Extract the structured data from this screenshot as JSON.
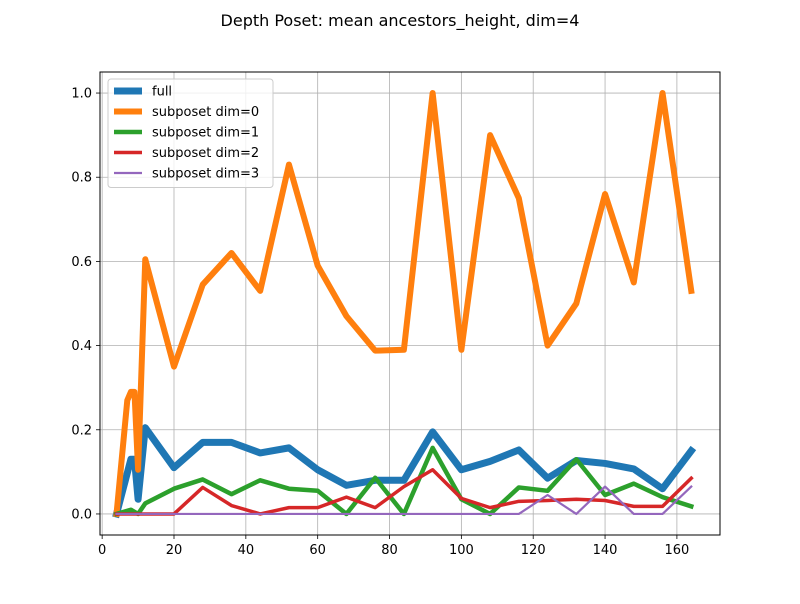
{
  "chart_data": {
    "type": "line",
    "title": "Depth Poset: mean ancestors_height, dim=4",
    "xlabel": "",
    "ylabel": "",
    "xlim": [
      -0.6,
      172.0
    ],
    "ylim": [
      -0.05,
      1.05
    ],
    "xticks": [
      0,
      20,
      40,
      60,
      80,
      100,
      120,
      140,
      160
    ],
    "yticks": [
      0.0,
      0.2,
      0.4,
      0.6,
      0.8,
      1.0
    ],
    "xtick_labels": [
      "0",
      "20",
      "40",
      "60",
      "80",
      "100",
      "120",
      "140",
      "160"
    ],
    "ytick_labels": [
      "0.0",
      "0.2",
      "0.4",
      "0.6",
      "0.8",
      "1.0"
    ],
    "grid": true,
    "legend_position": "upper-left",
    "series": [
      {
        "name": "full",
        "color": "#1f77b4",
        "line_width": 7,
        "x": [
          4,
          8,
          9,
          10,
          12,
          20,
          28,
          36,
          44,
          52,
          60,
          68,
          76,
          84,
          92,
          100,
          108,
          116,
          124,
          132,
          140,
          148,
          156,
          164
        ],
        "y": [
          0.0,
          0.13,
          0.13,
          0.035,
          0.205,
          0.11,
          0.17,
          0.17,
          0.145,
          0.157,
          0.105,
          0.068,
          0.08,
          0.08,
          0.195,
          0.105,
          0.125,
          0.152,
          0.085,
          0.127,
          0.12,
          0.107,
          0.06,
          0.15
        ]
      },
      {
        "name": "subposet dim=0",
        "color": "#ff7f0e",
        "line_width": 6,
        "x": [
          4,
          7,
          8,
          9,
          10,
          12,
          20,
          28,
          36,
          44,
          52,
          60,
          68,
          76,
          84,
          92,
          100,
          108,
          116,
          124,
          132,
          140,
          148,
          156,
          164
        ],
        "y": [
          0.0,
          0.27,
          0.29,
          0.29,
          0.105,
          0.605,
          0.35,
          0.545,
          0.62,
          0.53,
          0.83,
          0.59,
          0.47,
          0.388,
          0.39,
          1.0,
          0.39,
          0.9,
          0.75,
          0.4,
          0.5,
          0.76,
          0.55,
          1.0,
          0.53
        ]
      },
      {
        "name": "subposet dim=1",
        "color": "#2ca02c",
        "line_width": 4.5,
        "x": [
          4,
          8,
          10,
          12,
          20,
          28,
          36,
          44,
          52,
          60,
          68,
          76,
          84,
          92,
          100,
          108,
          116,
          124,
          132,
          140,
          148,
          156,
          164
        ],
        "y": [
          0.0,
          0.01,
          0.0,
          0.025,
          0.06,
          0.082,
          0.047,
          0.08,
          0.06,
          0.055,
          0.0,
          0.086,
          0.0,
          0.157,
          0.035,
          0.0,
          0.063,
          0.055,
          0.13,
          0.045,
          0.072,
          0.04,
          0.018
        ]
      },
      {
        "name": "subposet dim=2",
        "color": "#d62728",
        "line_width": 3.5,
        "x": [
          4,
          8,
          10,
          12,
          20,
          28,
          36,
          44,
          52,
          60,
          68,
          76,
          84,
          92,
          100,
          108,
          116,
          124,
          132,
          140,
          148,
          156,
          164
        ],
        "y": [
          0.0,
          0.0,
          0.0,
          0.0,
          0.0,
          0.063,
          0.02,
          0.0,
          0.015,
          0.015,
          0.04,
          0.015,
          0.065,
          0.105,
          0.037,
          0.015,
          0.03,
          0.032,
          0.035,
          0.032,
          0.018,
          0.018,
          0.085
        ]
      },
      {
        "name": "subposet dim=3",
        "color": "#9467bd",
        "line_width": 2.2,
        "x": [
          4,
          8,
          10,
          12,
          20,
          28,
          36,
          44,
          52,
          60,
          68,
          76,
          84,
          92,
          100,
          108,
          116,
          124,
          132,
          140,
          148,
          156,
          164
        ],
        "y": [
          0.0,
          0.0,
          0.0,
          0.0,
          0.0,
          0.0,
          0.0,
          0.0,
          0.0,
          0.0,
          0.0,
          0.0,
          0.0,
          0.0,
          0.0,
          0.0,
          0.0,
          0.045,
          0.0,
          0.065,
          0.0,
          0.0,
          0.065
        ]
      }
    ]
  }
}
